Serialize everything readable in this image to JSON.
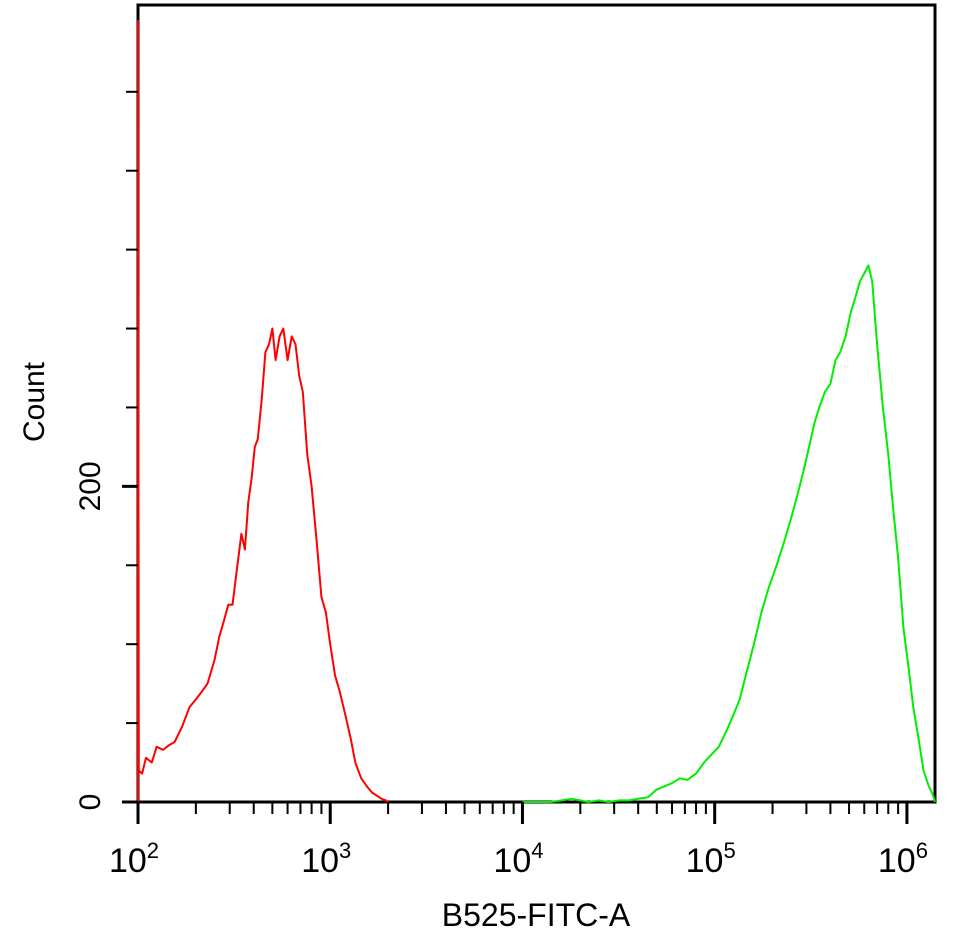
{
  "chart_data": {
    "type": "line",
    "title": "",
    "xlabel": "B525-FITC-A",
    "ylabel": "Count",
    "x_scale": "log",
    "xlim": [
      100,
      1400000
    ],
    "ylim": [
      0,
      505
    ],
    "x_ticks": [
      {
        "value": 100,
        "base": "10",
        "exp": "2"
      },
      {
        "value": 1000,
        "base": "10",
        "exp": "3"
      },
      {
        "value": 10000,
        "base": "10",
        "exp": "4"
      },
      {
        "value": 100000,
        "base": "10",
        "exp": "5"
      },
      {
        "value": 1000000,
        "base": "10",
        "exp": "6"
      }
    ],
    "y_tick_labels": [
      {
        "value": 0,
        "label": "0"
      },
      {
        "value": 200,
        "label": "200"
      }
    ],
    "y_minor_ticks": [
      50,
      100,
      150,
      250,
      300,
      350,
      400,
      450
    ],
    "grid": false,
    "legend": "none",
    "series": [
      {
        "color": "#ff0000",
        "x": [
          100,
          100,
          101,
          105,
          110,
          118,
          125,
          135,
          145,
          155,
          170,
          185,
          200,
          215,
          230,
          250,
          265,
          280,
          295,
          310,
          325,
          345,
          360,
          375,
          390,
          405,
          420,
          440,
          460,
          480,
          500,
          520,
          545,
          570,
          600,
          630,
          660,
          690,
          720,
          760,
          800,
          850,
          900,
          950,
          1000,
          1060,
          1120,
          1200,
          1280,
          1350,
          1450,
          1550,
          1650,
          1750,
          1850,
          1950,
          2000
        ],
        "y": [
          0,
          495,
          20,
          18,
          28,
          25,
          35,
          33,
          36,
          38,
          48,
          60,
          65,
          70,
          75,
          90,
          105,
          115,
          125,
          125,
          145,
          170,
          160,
          190,
          205,
          225,
          230,
          255,
          285,
          290,
          300,
          280,
          295,
          300,
          280,
          295,
          290,
          270,
          260,
          220,
          200,
          165,
          130,
          120,
          100,
          80,
          70,
          55,
          40,
          25,
          15,
          10,
          6,
          4,
          2,
          1,
          0
        ]
      },
      {
        "color": "#00ee00",
        "x": [
          10000,
          12000,
          14000,
          16000,
          18000,
          20000,
          22000,
          25000,
          28000,
          32000,
          36000,
          40000,
          45000,
          50000,
          55000,
          60000,
          66000,
          72000,
          80000,
          88000,
          96000,
          105000,
          115000,
          125000,
          135000,
          145000,
          160000,
          175000,
          190000,
          210000,
          230000,
          250000,
          270000,
          290000,
          310000,
          330000,
          350000,
          375000,
          400000,
          425000,
          450000,
          480000,
          510000,
          540000,
          570000,
          600000,
          630000,
          660000,
          700000,
          750000,
          800000,
          850000,
          900000,
          960000,
          1020000,
          1080000,
          1150000,
          1220000,
          1300000,
          1360000,
          1400000
        ],
        "y": [
          0,
          0,
          0,
          1,
          2,
          1,
          0,
          1,
          0,
          1,
          1,
          2,
          3,
          8,
          10,
          12,
          15,
          14,
          18,
          25,
          30,
          35,
          45,
          55,
          65,
          80,
          100,
          120,
          135,
          150,
          165,
          180,
          195,
          210,
          225,
          240,
          250,
          260,
          265,
          280,
          285,
          295,
          310,
          320,
          330,
          335,
          340,
          330,
          290,
          250,
          220,
          185,
          155,
          110,
          85,
          60,
          40,
          20,
          10,
          5,
          0
        ]
      }
    ]
  }
}
